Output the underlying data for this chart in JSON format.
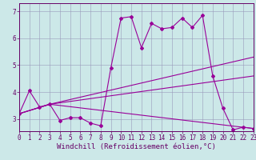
{
  "xlabel": "Windchill (Refroidissement éolien,°C)",
  "background_color": "#cce8e8",
  "line_color": "#990099",
  "spine_color": "#660066",
  "xlim": [
    0,
    23
  ],
  "ylim": [
    2.55,
    7.3
  ],
  "yticks": [
    3,
    4,
    5,
    6,
    7
  ],
  "xticks": [
    0,
    1,
    2,
    3,
    4,
    5,
    6,
    7,
    8,
    9,
    10,
    11,
    12,
    13,
    14,
    15,
    16,
    17,
    18,
    19,
    20,
    21,
    22,
    23
  ],
  "series": {
    "line1": {
      "x": [
        0,
        1,
        2,
        3,
        4,
        5,
        6,
        7,
        8,
        9,
        10,
        11,
        12,
        13,
        14,
        15,
        16,
        17,
        18,
        19,
        20,
        21,
        22,
        23
      ],
      "y": [
        3.2,
        4.05,
        3.45,
        3.55,
        2.95,
        3.05,
        3.05,
        2.85,
        2.75,
        4.9,
        6.75,
        6.8,
        5.65,
        6.55,
        6.35,
        6.4,
        6.75,
        6.4,
        6.85,
        4.6,
        3.4,
        2.6,
        2.7,
        2.65
      ]
    },
    "line2": {
      "x": [
        0,
        3,
        23
      ],
      "y": [
        3.2,
        3.55,
        5.3
      ]
    },
    "line3": {
      "x": [
        0,
        3,
        23
      ],
      "y": [
        3.2,
        3.55,
        4.6
      ]
    },
    "line4": {
      "x": [
        0,
        3,
        23
      ],
      "y": [
        3.2,
        3.55,
        2.65
      ]
    }
  },
  "grid_color": "#9999bb",
  "font_color": "#660066",
  "tick_font_size": 5.5,
  "xlabel_font_size": 6.5
}
